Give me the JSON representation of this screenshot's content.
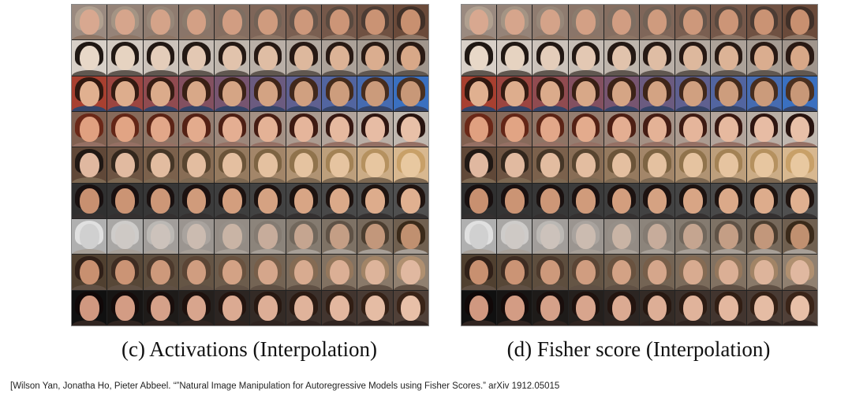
{
  "figure": {
    "left_caption": "(c) Activations (Interpolation)",
    "right_caption": "(d) Fisher score (Interpolation)",
    "citation": "[Wilson Yan, Jonatha Ho, Pieter Abbeel. “”Natural Image Manipulation for Autoregressive Models using Fisher Scores.” arXiv 1912.05015"
  },
  "rows": [
    {
      "bg": [
        "#9a8a80",
        "#6a4a3a"
      ],
      "skin": [
        "#d8a890",
        "#c89070"
      ],
      "hair": [
        "#b0a090",
        "#403028"
      ]
    },
    {
      "bg": [
        "#d8d0c8",
        "#a0958c"
      ],
      "skin": [
        "#e8d8c8",
        "#d8a888"
      ],
      "hair": [
        "#201814",
        "#2a1a14"
      ]
    },
    {
      "bg": [
        "#a84030",
        "#3a70c0"
      ],
      "skin": [
        "#e0b090",
        "#c89878"
      ],
      "hair": [
        "#301810",
        "#4a3020"
      ]
    },
    {
      "bg": [
        "#806050",
        "#c0b8b0"
      ],
      "skin": [
        "#e0a080",
        "#e8c0a8"
      ],
      "hair": [
        "#6a2818",
        "#281410"
      ]
    },
    {
      "bg": [
        "#604838",
        "#d8b890"
      ],
      "skin": [
        "#e0b8a0",
        "#e8c8a0"
      ],
      "hair": [
        "#201814",
        "#c8a068"
      ]
    },
    {
      "bg": [
        "#303030",
        "#505050"
      ],
      "skin": [
        "#c89070",
        "#e0b090"
      ],
      "hair": [
        "#181010",
        "#201410"
      ]
    },
    {
      "bg": [
        "#b0b0b0",
        "#706050"
      ],
      "skin": [
        "#d0d0d0",
        "#c09070"
      ],
      "hair": [
        "#e0e0e0",
        "#3a2a1a"
      ]
    },
    {
      "bg": [
        "#504030",
        "#908070"
      ],
      "skin": [
        "#c89070",
        "#e0b8a0"
      ],
      "hair": [
        "#302018",
        "#b09070"
      ]
    },
    {
      "bg": [
        "#101010",
        "#504038"
      ],
      "skin": [
        "#d09880",
        "#e8c0a8"
      ],
      "hair": [
        "#100808",
        "#3a2418"
      ]
    }
  ]
}
